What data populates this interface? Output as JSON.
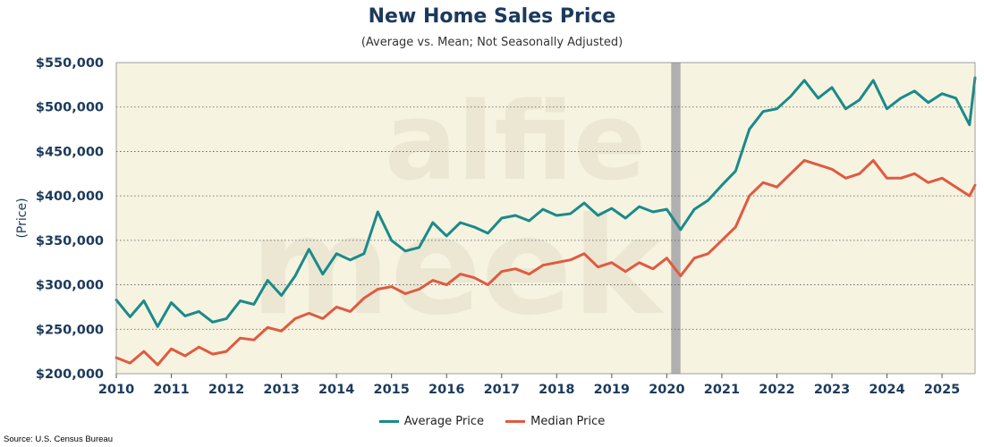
{
  "chart_data": {
    "type": "line",
    "title": "New Home Sales Price",
    "subtitle": "(Average vs. Mean; Not Seasonally Adjusted)",
    "ylabel": "(Price)",
    "xlabel": "",
    "xlim": [
      2010,
      2025.6
    ],
    "ylim": [
      200000,
      550000
    ],
    "y_ticks": [
      200000,
      250000,
      300000,
      350000,
      400000,
      450000,
      500000,
      550000
    ],
    "y_tick_labels": [
      "$200,000",
      "$250,000",
      "$300,000",
      "$350,000",
      "$400,000",
      "$450,000",
      "$500,000",
      "$550,000"
    ],
    "x_ticks": [
      2010,
      2011,
      2012,
      2013,
      2014,
      2015,
      2016,
      2017,
      2018,
      2019,
      2020,
      2021,
      2022,
      2023,
      2024,
      2025
    ],
    "x_tick_labels": [
      "2010",
      "2011",
      "2012",
      "2013",
      "2014",
      "2015",
      "2016",
      "2017",
      "2018",
      "2019",
      "2020",
      "2021",
      "2022",
      "2023",
      "2024",
      "2025"
    ],
    "grid": "horizontal dotted",
    "recession_band": {
      "start": 2020.08,
      "end": 2020.25,
      "color": "#b0b0b0"
    },
    "watermark": "alfie meek",
    "series": [
      {
        "name": "Average Price",
        "color": "#1a8a8a",
        "x": [
          2010.0,
          2010.25,
          2010.5,
          2010.75,
          2011.0,
          2011.25,
          2011.5,
          2011.75,
          2012.0,
          2012.25,
          2012.5,
          2012.75,
          2013.0,
          2013.25,
          2013.5,
          2013.75,
          2014.0,
          2014.25,
          2014.5,
          2014.75,
          2015.0,
          2015.25,
          2015.5,
          2015.75,
          2016.0,
          2016.25,
          2016.5,
          2016.75,
          2017.0,
          2017.25,
          2017.5,
          2017.75,
          2018.0,
          2018.25,
          2018.5,
          2018.75,
          2019.0,
          2019.25,
          2019.5,
          2019.75,
          2020.0,
          2020.25,
          2020.5,
          2020.75,
          2021.0,
          2021.25,
          2021.5,
          2021.75,
          2022.0,
          2022.25,
          2022.5,
          2022.75,
          2023.0,
          2023.25,
          2023.5,
          2023.75,
          2024.0,
          2024.25,
          2024.5,
          2024.75,
          2025.0,
          2025.25,
          2025.5,
          2025.6
        ],
        "values": [
          283000,
          264000,
          282000,
          253000,
          280000,
          265000,
          270000,
          258000,
          262000,
          282000,
          278000,
          305000,
          288000,
          310000,
          340000,
          312000,
          335000,
          328000,
          335000,
          382000,
          350000,
          338000,
          342000,
          370000,
          355000,
          370000,
          365000,
          358000,
          375000,
          378000,
          372000,
          385000,
          378000,
          380000,
          392000,
          378000,
          386000,
          375000,
          388000,
          382000,
          385000,
          362000,
          385000,
          395000,
          412000,
          428000,
          475000,
          495000,
          498000,
          512000,
          530000,
          510000,
          522000,
          498000,
          508000,
          530000,
          498000,
          510000,
          518000,
          505000,
          515000,
          510000,
          480000,
          533000
        ]
      },
      {
        "name": "Median Price",
        "color": "#e05a40",
        "x": [
          2010.0,
          2010.25,
          2010.5,
          2010.75,
          2011.0,
          2011.25,
          2011.5,
          2011.75,
          2012.0,
          2012.25,
          2012.5,
          2012.75,
          2013.0,
          2013.25,
          2013.5,
          2013.75,
          2014.0,
          2014.25,
          2014.5,
          2014.75,
          2015.0,
          2015.25,
          2015.5,
          2015.75,
          2016.0,
          2016.25,
          2016.5,
          2016.75,
          2017.0,
          2017.25,
          2017.5,
          2017.75,
          2018.0,
          2018.25,
          2018.5,
          2018.75,
          2019.0,
          2019.25,
          2019.5,
          2019.75,
          2020.0,
          2020.25,
          2020.5,
          2020.75,
          2021.0,
          2021.25,
          2021.5,
          2021.75,
          2022.0,
          2022.25,
          2022.5,
          2022.75,
          2023.0,
          2023.25,
          2023.5,
          2023.75,
          2024.0,
          2024.25,
          2024.5,
          2024.75,
          2025.0,
          2025.25,
          2025.5,
          2025.6
        ],
        "values": [
          218000,
          212000,
          225000,
          210000,
          228000,
          220000,
          230000,
          222000,
          225000,
          240000,
          238000,
          252000,
          248000,
          262000,
          268000,
          262000,
          275000,
          270000,
          285000,
          295000,
          298000,
          290000,
          295000,
          305000,
          300000,
          312000,
          308000,
          300000,
          315000,
          318000,
          312000,
          322000,
          325000,
          328000,
          335000,
          320000,
          325000,
          315000,
          325000,
          318000,
          330000,
          310000,
          330000,
          335000,
          350000,
          365000,
          400000,
          415000,
          410000,
          425000,
          440000,
          435000,
          430000,
          420000,
          425000,
          440000,
          420000,
          420000,
          425000,
          415000,
          420000,
          410000,
          400000,
          412000
        ]
      }
    ]
  },
  "legend": {
    "items": [
      {
        "label": "Average Price",
        "color": "#1a8a8a"
      },
      {
        "label": "Median Price",
        "color": "#e05a40"
      }
    ]
  },
  "source": "Source: U.S. Census Bureau"
}
